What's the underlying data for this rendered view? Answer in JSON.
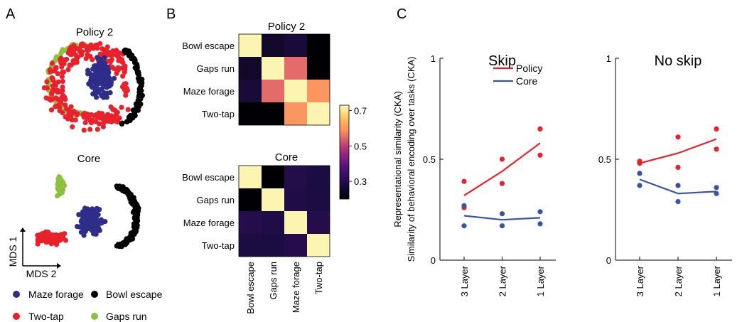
{
  "panels": {
    "a": "A",
    "b": "B",
    "c": "C"
  },
  "colors": {
    "maze_forage": "#2e2e8a",
    "two_tap": "#e8212b",
    "bowl_escape": "#000000",
    "gaps_run": "#8cc13f",
    "policy": "#e8212b",
    "core": "#3a54a4",
    "cmap_low": "#000004",
    "cmap_mid": "#b63679",
    "cmap_high": "#fcfdbf"
  },
  "mds": {
    "policy_title": "Policy 2",
    "core_title": "Core",
    "axis_y": "MDS 1",
    "axis_x": "MDS 2",
    "legend": {
      "maze_forage": "Maze forage",
      "bowl_escape": "Bowl escape",
      "two_tap": "Two-tap",
      "gaps_run": "Gaps run"
    }
  },
  "chart_data": [
    {
      "type": "heatmap",
      "title": "Policy 2",
      "rows": [
        "Bowl escape",
        "Gaps run",
        "Maze forage",
        "Two-tap"
      ],
      "cols": [
        "Bowl escape",
        "Gaps run",
        "Maze forage",
        "Two-tap"
      ],
      "values": [
        [
          0.72,
          0.25,
          0.27,
          0.2
        ],
        [
          0.25,
          0.72,
          0.55,
          0.2
        ],
        [
          0.27,
          0.55,
          0.72,
          0.6
        ],
        [
          0.2,
          0.2,
          0.6,
          0.72
        ]
      ]
    },
    {
      "type": "heatmap",
      "title": "Core",
      "rows": [
        "Bowl escape",
        "Gaps run",
        "Maze forage",
        "Two-tap"
      ],
      "cols": [
        "Bowl escape",
        "Gaps run",
        "Maze forage",
        "Two-tap"
      ],
      "values": [
        [
          0.72,
          0.2,
          0.3,
          0.28
        ],
        [
          0.2,
          0.72,
          0.29,
          0.28
        ],
        [
          0.3,
          0.29,
          0.72,
          0.3
        ],
        [
          0.28,
          0.28,
          0.3,
          0.72
        ]
      ]
    },
    {
      "type": "colorbar",
      "ticks": [
        "0.7",
        "0.5",
        "0.3"
      ],
      "tick_values": [
        0.7,
        0.5,
        0.3
      ],
      "range": [
        0.2,
        0.73
      ]
    },
    {
      "type": "line",
      "title": "Skip",
      "ylabel": "Similarity of behavioral encoding over tasks (CKA)",
      "ylabel_outer": "Representational similarity (CKA)",
      "categories": [
        "3 Layer",
        "2 Layer",
        "1 Layer"
      ],
      "ylim": [
        0,
        1
      ],
      "yticks": [
        "0",
        "0.5",
        "1"
      ],
      "legend": [
        "Policy",
        "Core"
      ],
      "series": [
        {
          "name": "Policy",
          "values": [
            0.32,
            0.44,
            0.58
          ],
          "points": [
            [
              0.39,
              0.26
            ],
            [
              0.5,
              0.38
            ],
            [
              0.65,
              0.52
            ]
          ]
        },
        {
          "name": "Core",
          "values": [
            0.22,
            0.2,
            0.21
          ],
          "points": [
            [
              0.27,
              0.17
            ],
            [
              0.23,
              0.17
            ],
            [
              0.24,
              0.18
            ]
          ]
        }
      ]
    },
    {
      "type": "line",
      "title": "No skip",
      "categories": [
        "3 Layer",
        "2 Layer",
        "1 Layer"
      ],
      "ylim": [
        0,
        1
      ],
      "yticks": [
        "0",
        "0.5",
        "1"
      ],
      "series": [
        {
          "name": "Policy",
          "values": [
            0.48,
            0.53,
            0.6
          ],
          "points": [
            [
              0.49,
              0.48
            ],
            [
              0.61,
              0.46
            ],
            [
              0.65,
              0.55
            ]
          ]
        },
        {
          "name": "Core",
          "values": [
            0.4,
            0.33,
            0.34
          ],
          "points": [
            [
              0.43,
              0.37
            ],
            [
              0.37,
              0.29
            ],
            [
              0.36,
              0.33
            ]
          ]
        }
      ]
    }
  ]
}
